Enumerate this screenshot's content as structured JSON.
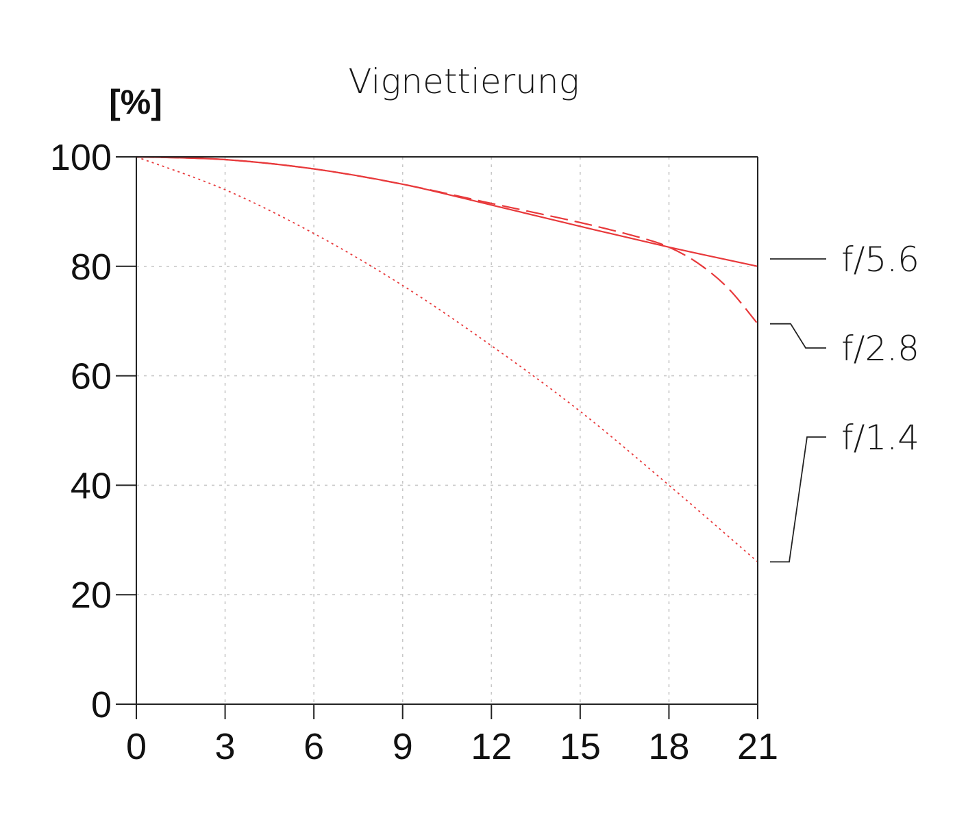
{
  "chart_data": {
    "type": "line",
    "title": "Vignettierung",
    "ylabel": "[%]",
    "xlabel": "",
    "xlim": [
      0,
      21
    ],
    "ylim": [
      0,
      100
    ],
    "xticks": [
      0,
      3,
      6,
      9,
      12,
      15,
      18,
      21
    ],
    "xtick_labels": [
      "0",
      "3",
      "6",
      "9",
      "12",
      "15",
      "18",
      "21"
    ],
    "yticks": [
      0,
      20,
      40,
      60,
      80,
      100
    ],
    "ytick_labels": [
      "0",
      "20",
      "40",
      "60",
      "80",
      "100"
    ],
    "grid": true,
    "legend_placement": "right",
    "series": [
      {
        "name": "f/5.6",
        "color": "#e8393b",
        "style": "solid",
        "x": [
          0,
          3,
          6,
          9,
          12,
          15,
          18,
          21
        ],
        "y": [
          100,
          99.5,
          97.8,
          95,
          91.2,
          87.3,
          83.5,
          80
        ]
      },
      {
        "name": "f/2.8",
        "color": "#e8393b",
        "style": "dashed",
        "x": [
          0,
          3,
          6,
          9,
          12,
          15,
          17,
          18,
          19,
          20,
          21
        ],
        "y": [
          100,
          99.5,
          97.8,
          95,
          91.5,
          88,
          85.3,
          83.5,
          80.5,
          76,
          69.5
        ]
      },
      {
        "name": "f/1.4",
        "color": "#e8393b",
        "style": "dotted",
        "x": [
          0,
          3,
          6,
          9,
          12,
          15,
          18,
          21
        ],
        "y": [
          100,
          94,
          86,
          76.5,
          65.5,
          53.5,
          40,
          26
        ]
      }
    ]
  }
}
